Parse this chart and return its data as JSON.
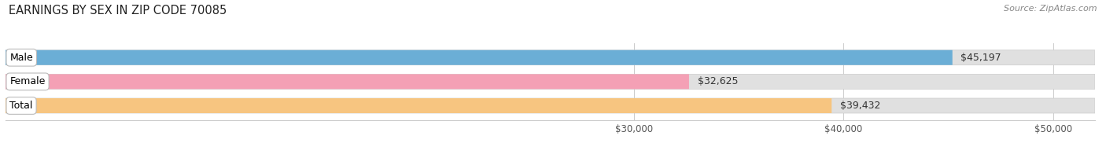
{
  "title": "EARNINGS BY SEX IN ZIP CODE 70085",
  "source": "Source: ZipAtlas.com",
  "categories": [
    "Male",
    "Female",
    "Total"
  ],
  "values": [
    45197,
    32625,
    39432
  ],
  "bar_colors": [
    "#6baed6",
    "#f4a0b5",
    "#f7c580"
  ],
  "bar_bg_color": "#e0e0e0",
  "value_labels": [
    "$45,197",
    "$32,625",
    "$39,432"
  ],
  "xmin": 0,
  "xmax": 52000,
  "xticks": [
    30000,
    40000,
    50000
  ],
  "xtick_labels": [
    "$30,000",
    "$40,000",
    "$50,000"
  ],
  "title_fontsize": 10.5,
  "label_fontsize": 9,
  "value_fontsize": 9,
  "source_fontsize": 8,
  "bar_height": 0.62,
  "background_color": "#ffffff",
  "grid_color": "#cccccc",
  "label_box_edgecolor": "#bbbbbb",
  "spine_color": "#cccccc"
}
